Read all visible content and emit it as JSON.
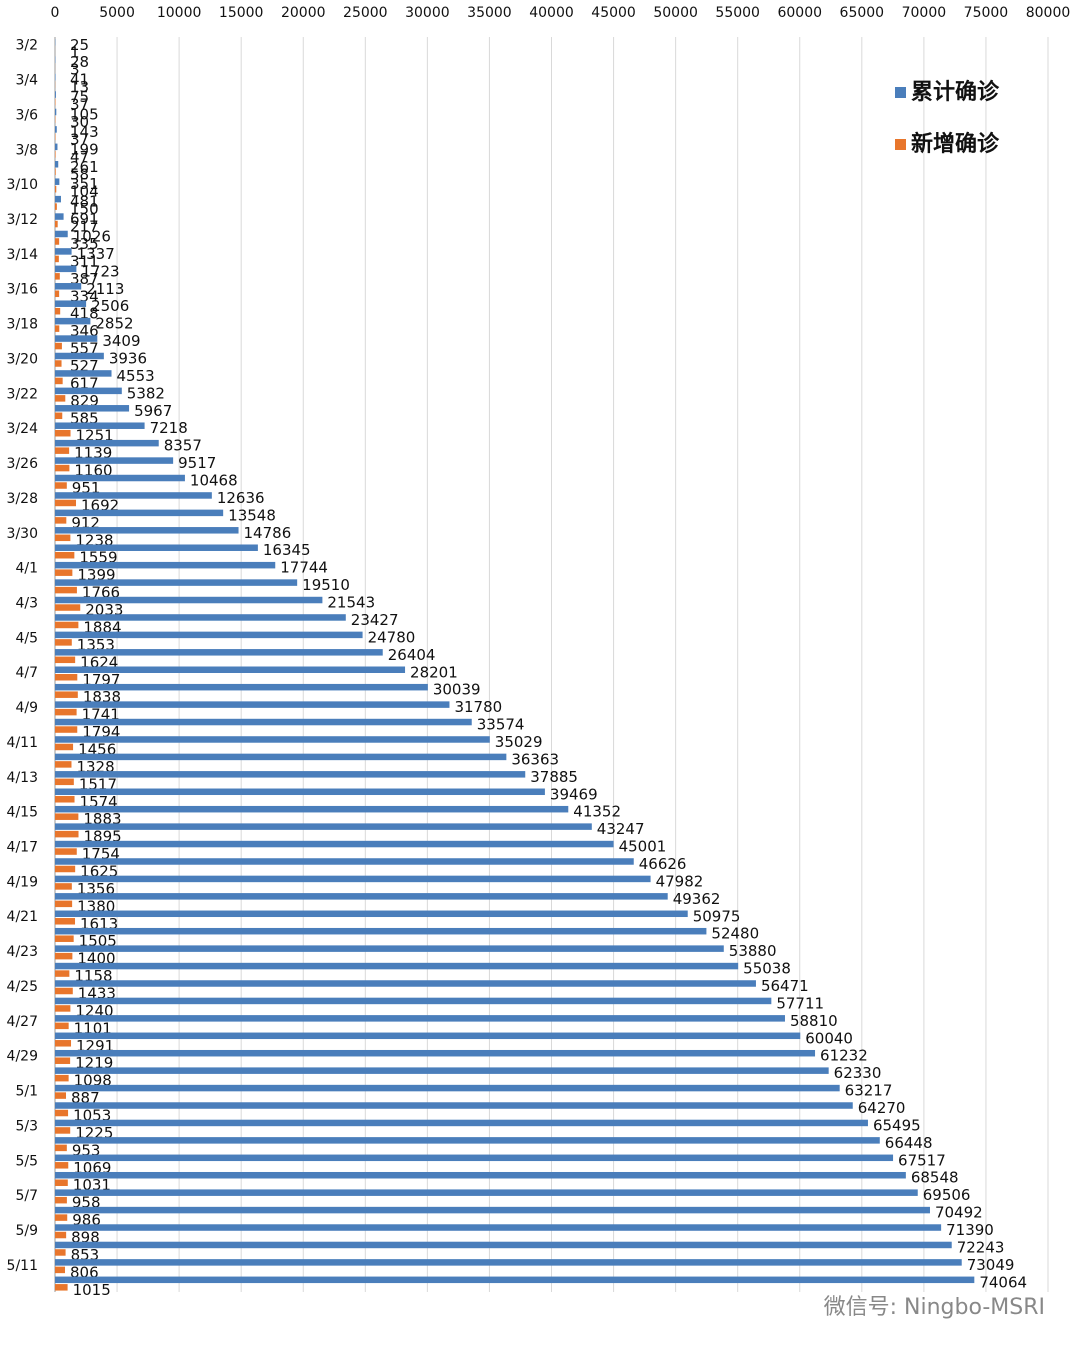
{
  "chart_data": {
    "type": "barh",
    "categories": [
      "3/2",
      null,
      "3/4",
      null,
      "3/6",
      null,
      "3/8",
      null,
      "3/10",
      null,
      "3/12",
      null,
      "3/14",
      null,
      "3/16",
      null,
      "3/18",
      null,
      "3/20",
      null,
      "3/22",
      null,
      "3/24",
      null,
      "3/26",
      null,
      "3/28",
      null,
      "3/30",
      null,
      "4/1",
      null,
      "4/3",
      null,
      "4/5",
      null,
      "4/7",
      null,
      "4/9",
      null,
      "4/11",
      null,
      "4/13",
      null,
      "4/15",
      null,
      "4/17",
      null,
      "4/19",
      null,
      "4/21",
      null,
      "4/23",
      null,
      "4/25",
      null,
      "4/27",
      null,
      "4/29",
      null,
      "5/1",
      null,
      "5/3",
      null,
      "5/5",
      null,
      "5/7",
      null,
      "5/9",
      null,
      "5/11",
      null
    ],
    "series": [
      {
        "name": "累计确诊",
        "color": "#4a7ebb",
        "values": [
          25,
          28,
          41,
          75,
          105,
          143,
          199,
          261,
          351,
          481,
          691,
          1026,
          1337,
          1723,
          2113,
          2506,
          2852,
          3409,
          3936,
          4553,
          5382,
          5967,
          7218,
          8357,
          9517,
          10468,
          12636,
          13548,
          14786,
          16345,
          17744,
          19510,
          21543,
          23427,
          24780,
          26404,
          28201,
          30039,
          31780,
          33574,
          35029,
          36363,
          37885,
          39469,
          41352,
          43247,
          45001,
          46626,
          47982,
          49362,
          50975,
          52480,
          53880,
          55038,
          56471,
          57711,
          58810,
          60040,
          61232,
          62330,
          63217,
          64270,
          65495,
          66448,
          67517,
          68548,
          69506,
          70492,
          71390,
          72243,
          73049,
          74064
        ]
      },
      {
        "name": "新增确诊",
        "color": "#e8762c",
        "values": [
          1,
          3,
          13,
          37,
          30,
          37,
          47,
          58,
          104,
          150,
          217,
          335,
          311,
          387,
          334,
          418,
          346,
          557,
          527,
          617,
          829,
          585,
          1251,
          1139,
          1160,
          951,
          1692,
          912,
          1238,
          1559,
          1399,
          1766,
          2033,
          1884,
          1353,
          1624,
          1797,
          1838,
          1741,
          1794,
          1456,
          1328,
          1517,
          1574,
          1883,
          1895,
          1754,
          1625,
          1356,
          1380,
          1613,
          1505,
          1400,
          1158,
          1433,
          1240,
          1101,
          1291,
          1219,
          1098,
          887,
          1053,
          1225,
          953,
          1069,
          1031,
          958,
          986,
          898,
          853,
          806,
          1015
        ]
      }
    ],
    "xlim": [
      0,
      80000
    ],
    "xticks": [
      0,
      5000,
      10000,
      15000,
      20000,
      25000,
      30000,
      35000,
      40000,
      45000,
      50000,
      55000,
      60000,
      65000,
      70000,
      75000,
      80000
    ],
    "grid": true,
    "legend": "upper right",
    "watermark": "微信号: Ningbo-MSRI"
  }
}
